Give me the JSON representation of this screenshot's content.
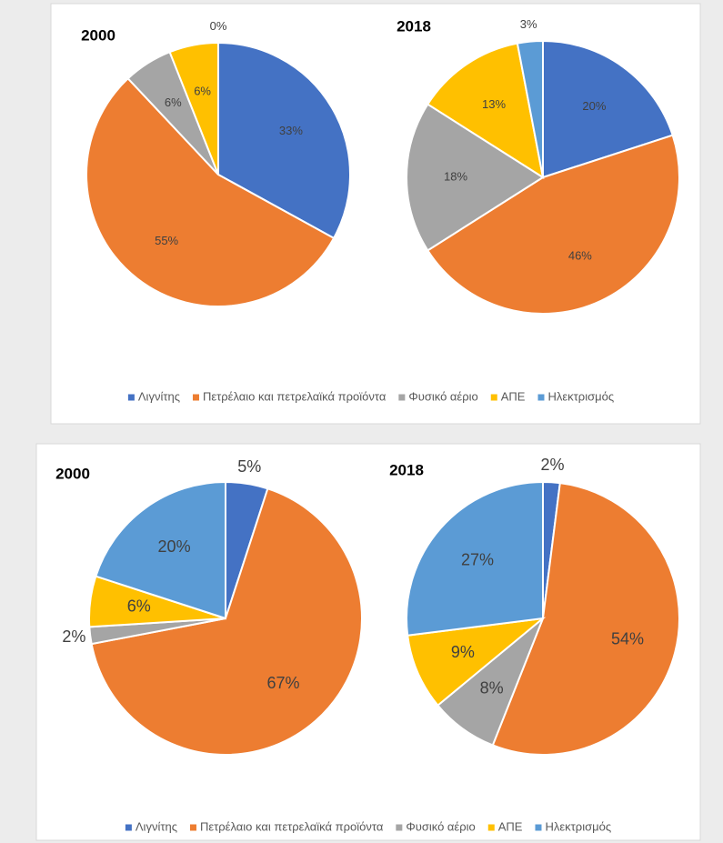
{
  "chart_data": [
    {
      "type": "pie",
      "categories": [
        "Λιγνίτης",
        "Πετρέλαιο και πετρελαϊκά προϊόντα",
        "Φυσικό αέριο",
        "ΑΠΕ",
        "Ηλεκτρισμός"
      ],
      "colors": [
        "#4472c4",
        "#ed7d31",
        "#a5a5a5",
        "#ffc000",
        "#5b9bd5"
      ],
      "series": [
        {
          "name": "2000",
          "values": [
            33,
            55,
            6,
            6,
            0
          ],
          "value_labels": [
            "33%",
            "55%",
            "6%",
            "6%",
            "0%"
          ]
        },
        {
          "name": "2018",
          "values": [
            20,
            46,
            18,
            13,
            3
          ],
          "value_labels": [
            "20%",
            "46%",
            "18%",
            "13%",
            "3%"
          ]
        }
      ]
    },
    {
      "type": "pie",
      "categories": [
        "Λιγνίτης",
        "Πετρέλαιο και πετρελαϊκά προϊόντα",
        "Φυσικό αέριο",
        "ΑΠΕ",
        "Ηλεκτρισμός"
      ],
      "colors": [
        "#4472c4",
        "#ed7d31",
        "#a5a5a5",
        "#ffc000",
        "#5b9bd5"
      ],
      "series": [
        {
          "name": "2000",
          "values": [
            5,
            67,
            2,
            6,
            20
          ],
          "value_labels": [
            "5%",
            "67%",
            "2%",
            "6%",
            "20%"
          ]
        },
        {
          "name": "2018",
          "values": [
            2,
            54,
            8,
            9,
            27
          ],
          "value_labels": [
            "2%",
            "54%",
            "8%",
            "9%",
            "27%"
          ]
        }
      ]
    }
  ]
}
